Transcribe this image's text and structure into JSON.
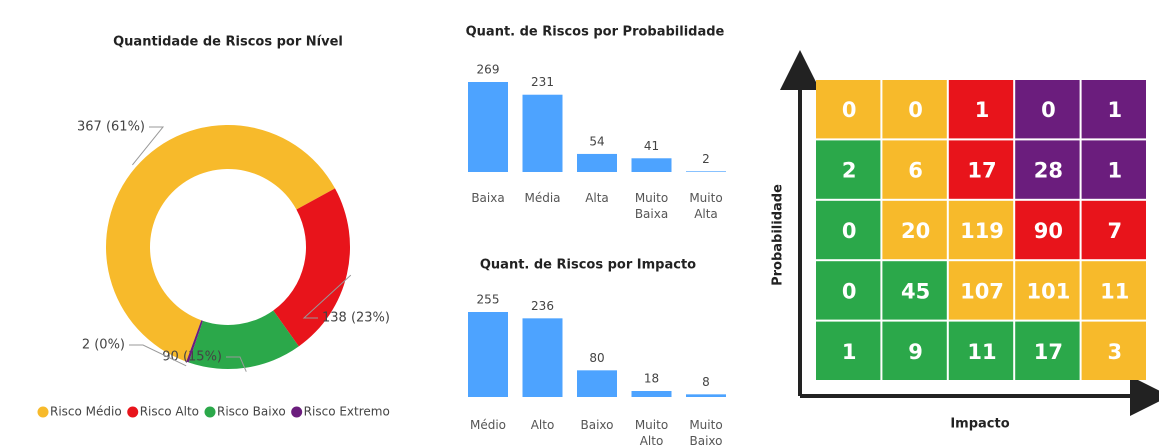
{
  "chart_data": [
    {
      "type": "donut",
      "title": "Quantidade de Riscos por Nível",
      "categories": [
        "Risco Médio",
        "Risco Alto",
        "Risco Baixo",
        "Risco Extremo"
      ],
      "values": [
        367,
        138,
        90,
        2
      ],
      "value_labels": [
        "367 (61%)",
        "138 (23%)",
        "90 (15%)",
        "2 (0%)"
      ],
      "colors": [
        "#f7ba2b",
        "#e8141b",
        "#2ba84a",
        "#6b1d7d"
      ]
    },
    {
      "type": "bar",
      "title": "Quant. de Riscos por Probabilidade",
      "categories": [
        "Baixa",
        "Média",
        "Alta",
        "Muito Baixa",
        "Muito Alta"
      ],
      "values": [
        269,
        231,
        54,
        41,
        2
      ],
      "color": "#4da3ff"
    },
    {
      "type": "bar",
      "title": "Quant. de Riscos por Impacto",
      "categories": [
        "Médio",
        "Alto",
        "Baixo",
        "Muito Alto",
        "Muito Baixo"
      ],
      "values": [
        255,
        236,
        80,
        18,
        8
      ],
      "color": "#4da3ff"
    },
    {
      "type": "heatmap",
      "xlabel": "Impacto",
      "ylabel": "Probabilidade",
      "values": [
        [
          0,
          0,
          1,
          0,
          1
        ],
        [
          2,
          6,
          17,
          28,
          1
        ],
        [
          0,
          20,
          119,
          90,
          7
        ],
        [
          0,
          45,
          107,
          101,
          11
        ],
        [
          1,
          9,
          11,
          17,
          3
        ]
      ],
      "colors": [
        [
          "#f7ba2b",
          "#f7ba2b",
          "#e8141b",
          "#6b1d7d",
          "#6b1d7d"
        ],
        [
          "#2ba84a",
          "#f7ba2b",
          "#e8141b",
          "#6b1d7d",
          "#6b1d7d"
        ],
        [
          "#2ba84a",
          "#f7ba2b",
          "#f7ba2b",
          "#e8141b",
          "#e8141b"
        ],
        [
          "#2ba84a",
          "#2ba84a",
          "#f7ba2b",
          "#f7ba2b",
          "#f7ba2b"
        ],
        [
          "#2ba84a",
          "#2ba84a",
          "#2ba84a",
          "#2ba84a",
          "#f7ba2b"
        ]
      ]
    }
  ]
}
